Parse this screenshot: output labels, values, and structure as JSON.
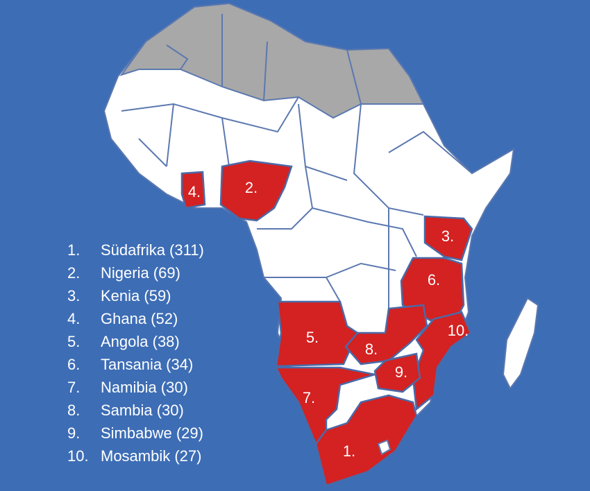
{
  "legend": [
    {
      "rank": "1.",
      "label": "Südafrika (311)"
    },
    {
      "rank": "2.",
      "label": "Nigeria (69)"
    },
    {
      "rank": "3.",
      "label": "Kenia (59)"
    },
    {
      "rank": "4.",
      "label": "Ghana (52)"
    },
    {
      "rank": "5.",
      "label": "Angola (38)"
    },
    {
      "rank": "6.",
      "label": "Tansania (34)"
    },
    {
      "rank": "7.",
      "label": "Namibia (30)"
    },
    {
      "rank": "8.",
      "label": "Sambia (30)"
    },
    {
      "rank": "9.",
      "label": "Simbabwe (29)"
    },
    {
      "rank": "10.",
      "label": "Mosambik (27)"
    }
  ],
  "map_labels": [
    {
      "label": "1."
    },
    {
      "label": "2."
    },
    {
      "label": "3."
    },
    {
      "label": "4."
    },
    {
      "label": "5."
    },
    {
      "label": "6."
    },
    {
      "label": "7."
    },
    {
      "label": "8."
    },
    {
      "label": "9."
    },
    {
      "label": "10."
    }
  ]
}
